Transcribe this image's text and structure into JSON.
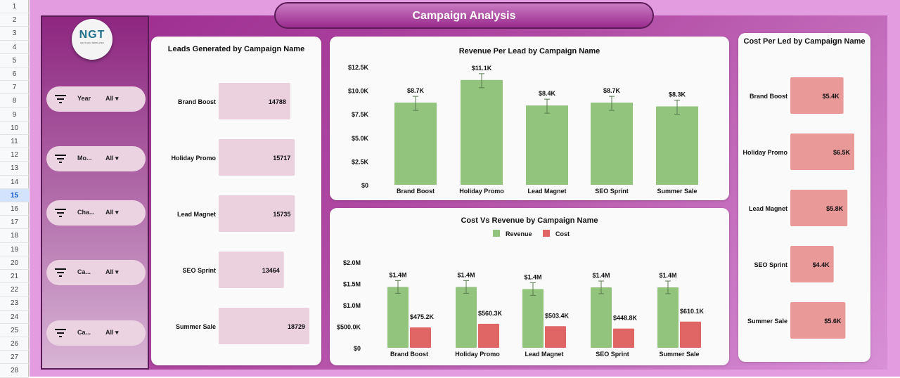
{
  "row_numbers": [
    "1",
    "2",
    "3",
    "4",
    "5",
    "6",
    "7",
    "8",
    "9",
    "10",
    "11",
    "12",
    "13",
    "14",
    "15",
    "16",
    "17",
    "18",
    "19",
    "20",
    "21",
    "22",
    "23",
    "24",
    "25",
    "26",
    "27",
    "28"
  ],
  "selected_row": "15",
  "title": "Campaign Analysis",
  "logo": {
    "text": "NGT",
    "subtext": "NEXT GEN TEMPLATES"
  },
  "filters": [
    {
      "label": "Year",
      "value": "All",
      "icon": "filter-icon"
    },
    {
      "label": "Mo...",
      "value": "All",
      "icon": "filter-icon"
    },
    {
      "label": "Cha...",
      "value": "All",
      "icon": "filter-icon"
    },
    {
      "label": "Ca...",
      "value": "All",
      "icon": "filter-icon"
    },
    {
      "label": "Ca...",
      "value": "All",
      "icon": "filter-icon"
    }
  ],
  "chart_data": [
    {
      "id": "leads",
      "type": "bar",
      "orientation": "horizontal",
      "title": "Leads Generated by Campaign Name",
      "categories": [
        "Brand Boost",
        "Holiday Promo",
        "Lead Magnet",
        "SEO Sprint",
        "Summer Sale"
      ],
      "values": [
        14788,
        15717,
        15735,
        13464,
        18729
      ],
      "labels": [
        "14788",
        "15717",
        "15735",
        "13464",
        "18729"
      ],
      "color": "#ebd0dd"
    },
    {
      "id": "rpl",
      "type": "bar",
      "title": "Revenue Per Lead by Campaign Name",
      "categories": [
        "Brand Boost",
        "Holiday Promo",
        "Lead Magnet",
        "SEO Sprint",
        "Summer Sale"
      ],
      "values": [
        8700,
        11100,
        8400,
        8700,
        8300
      ],
      "labels": [
        "$8.7K",
        "$11.1K",
        "$8.4K",
        "$8.7K",
        "$8.3K"
      ],
      "yticks": [
        "$0",
        "$2.5K",
        "$5.0K",
        "$7.5K",
        "$10.0K",
        "$12.5K"
      ],
      "ylim": [
        0,
        12500
      ],
      "color": "#93c47d",
      "error_bars": true
    },
    {
      "id": "cvr",
      "type": "bar",
      "title": "Cost Vs Revenue by Campaign Name",
      "categories": [
        "Brand Boost",
        "Holiday Promo",
        "Lead Magnet",
        "SEO Sprint",
        "Summer Sale"
      ],
      "series": [
        {
          "name": "Revenue",
          "values": [
            1420000,
            1420000,
            1370000,
            1410000,
            1410000
          ],
          "labels": [
            "$1.4M",
            "$1.4M",
            "$1.4M",
            "$1.4M",
            "$1.4M"
          ],
          "color": "#93c47d"
        },
        {
          "name": "Cost",
          "values": [
            475200,
            560300,
            503400,
            448800,
            610100
          ],
          "labels": [
            "$475.2K",
            "$560.3K",
            "$503.4K",
            "$448.8K",
            "$610.1K"
          ],
          "color": "#e06666"
        }
      ],
      "yticks": [
        "$0",
        "$500.0K",
        "$1.0M",
        "$1.5M",
        "$2.0M"
      ],
      "ylim": [
        0,
        2000000
      ],
      "legend": "top"
    },
    {
      "id": "cpl",
      "type": "bar",
      "orientation": "horizontal",
      "title": "Cost Per Led by Campaign Name",
      "categories": [
        "Brand Boost",
        "Holiday Promo",
        "Lead Magnet",
        "SEO Sprint",
        "Summer Sale"
      ],
      "values": [
        5400,
        6500,
        5800,
        4400,
        5600
      ],
      "labels": [
        "$5.4K",
        "$6.5K",
        "$5.8K",
        "$4.4K",
        "$5.6K"
      ],
      "color": "#ea9999"
    }
  ]
}
